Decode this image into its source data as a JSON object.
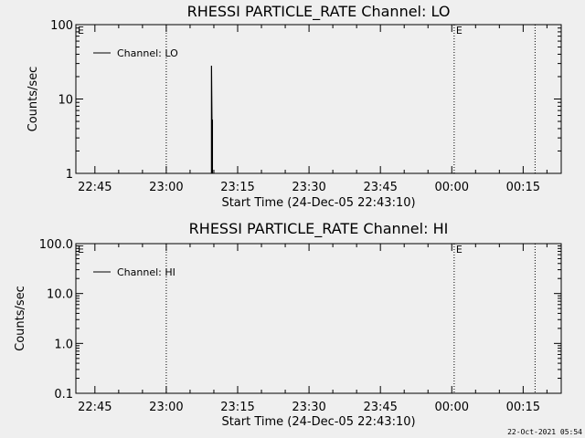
{
  "footer": {
    "timestamp": "22-Oct-2021 05:54"
  },
  "chart_data": [
    {
      "type": "line",
      "title": "RHESSI PARTICLE_RATE Channel: LO",
      "xlabel": "Start Time (24-Dec-05 22:43:10)",
      "ylabel": "Counts/sec",
      "y_scale": "log",
      "ylim": [
        1,
        100
      ],
      "y_ticks": [
        1,
        10,
        100
      ],
      "y_tick_labels": [
        "1",
        "10",
        "100"
      ],
      "x_range_minutes": [
        -2,
        100
      ],
      "x_ticks": [
        2,
        17,
        32,
        47,
        62,
        77,
        92
      ],
      "x_tick_labels": [
        "22:45",
        "23:00",
        "23:15",
        "23:30",
        "23:45",
        "00:00",
        "00:15"
      ],
      "legend": {
        "position": "top-left",
        "label": "Channel: LO"
      },
      "vlines": [
        17,
        77.5,
        94.5
      ],
      "vline_markers": [
        {
          "x": -2,
          "label": "E"
        },
        {
          "x": 77.5,
          "label": "E"
        }
      ],
      "series": [
        {
          "name": "Channel: LO",
          "points": [
            [
              26.5,
              1
            ],
            [
              26.5,
              28
            ],
            [
              26.6,
              5.2
            ],
            [
              26.7,
              5.2
            ],
            [
              26.7,
              1
            ]
          ]
        }
      ]
    },
    {
      "type": "line",
      "title": "RHESSI PARTICLE_RATE Channel: HI",
      "xlabel": "Start Time (24-Dec-05 22:43:10)",
      "ylabel": "Counts/sec",
      "y_scale": "log",
      "ylim": [
        0.1,
        100
      ],
      "y_ticks": [
        0.1,
        1,
        10,
        100
      ],
      "y_tick_labels": [
        "0.1",
        "1.0",
        "10.0",
        "100.0"
      ],
      "x_range_minutes": [
        -2,
        100
      ],
      "x_ticks": [
        2,
        17,
        32,
        47,
        62,
        77,
        92
      ],
      "x_tick_labels": [
        "22:45",
        "23:00",
        "23:15",
        "23:30",
        "23:45",
        "00:00",
        "00:15"
      ],
      "legend": {
        "position": "top-left",
        "label": "Channel: HI"
      },
      "vlines": [
        17,
        77.5,
        94.5
      ],
      "vline_markers": [
        {
          "x": -2,
          "label": "E"
        },
        {
          "x": 77.5,
          "label": "E"
        }
      ],
      "series": [
        {
          "name": "Channel: HI",
          "points": []
        }
      ]
    }
  ]
}
